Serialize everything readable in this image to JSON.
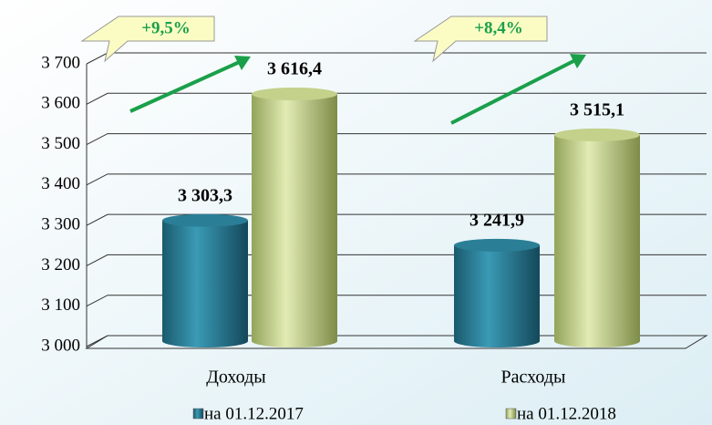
{
  "chart_data": {
    "type": "bar",
    "categories": [
      "Доходы",
      "Расходы"
    ],
    "series": [
      {
        "name": "на 01.12.2017",
        "color": "#2a7f97",
        "values": [
          3303.3,
          3241.9
        ],
        "value_labels": [
          "3 303,3",
          "3 241,9"
        ]
      },
      {
        "name": "на 01.12.2018",
        "color": "#c3d18a",
        "values": [
          3616.4,
          3515.1
        ],
        "value_labels": [
          "3 616,4",
          "3 515,1"
        ]
      }
    ],
    "ylim": [
      3000,
      3700
    ],
    "yticks": [
      {
        "value": 3000,
        "label": "3 000"
      },
      {
        "value": 3100,
        "label": "3 100"
      },
      {
        "value": 3200,
        "label": "3 200"
      },
      {
        "value": 3300,
        "label": "3 300"
      },
      {
        "value": 3400,
        "label": "3 400"
      },
      {
        "value": 3500,
        "label": "3 500"
      },
      {
        "value": 3600,
        "label": "3 600"
      },
      {
        "value": 3700,
        "label": "3 700"
      }
    ],
    "annotations": [
      "+9,5%",
      "+8,4%"
    ],
    "grid": true
  }
}
